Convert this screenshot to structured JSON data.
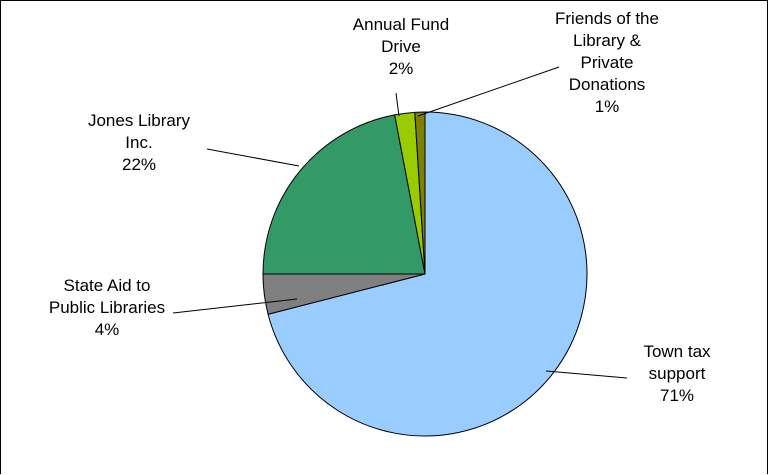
{
  "chart_data": {
    "type": "pie",
    "title": "",
    "slices": [
      {
        "label_lines": [
          "Town tax",
          "support"
        ],
        "percent_label": "71%",
        "value": 71,
        "color": "#99ccff"
      },
      {
        "label_lines": [
          "State Aid to",
          "Public Libraries"
        ],
        "percent_label": "4%",
        "value": 4,
        "color": "#808080"
      },
      {
        "label_lines": [
          "Jones Library",
          "Inc."
        ],
        "percent_label": "22%",
        "value": 22,
        "color": "#339966"
      },
      {
        "label_lines": [
          "Annual Fund",
          "Drive"
        ],
        "percent_label": "2%",
        "value": 2,
        "color": "#99cc00"
      },
      {
        "label_lines": [
          "Friends of the",
          "Library &",
          "Private",
          "Donations"
        ],
        "percent_label": "1%",
        "value": 1,
        "color": "#808000"
      }
    ]
  }
}
